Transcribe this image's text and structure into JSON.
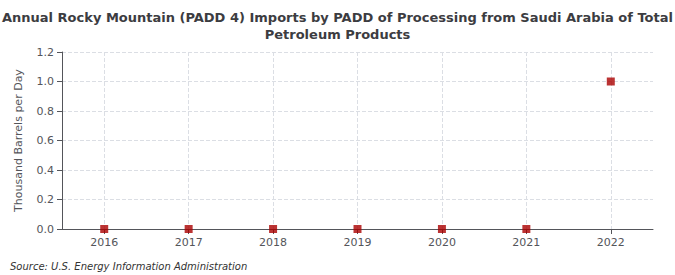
{
  "chart_data": {
    "type": "scatter",
    "title": "Annual Rocky Mountain (PADD 4) Imports by PADD of Processing from Saudi Arabia of Total\nPetroleum Products",
    "ylabel": "Thousand Barrels per Day",
    "annotations": [
      "Source: U.S. Energy Information Administration"
    ],
    "x": [
      2016,
      2017,
      2018,
      2019,
      2020,
      2021,
      2022
    ],
    "values": [
      0.0,
      0.0,
      0.0,
      0.0,
      0.0,
      0.0,
      1.0
    ],
    "color": "#AA0000",
    "marker": "square",
    "xlim": [
      2015.5,
      2022.5
    ],
    "xticks": [
      2016,
      2017,
      2018,
      2019,
      2020,
      2021,
      2022
    ],
    "ylim": [
      0.0,
      1.2
    ],
    "yticks": [
      {
        "value": 0.0,
        "label": "0.0"
      },
      {
        "value": 0.2,
        "label": "0.2"
      },
      {
        "value": 0.4,
        "label": "0.4"
      },
      {
        "value": 0.6,
        "label": "0.6"
      },
      {
        "value": 0.8,
        "label": "0.8"
      },
      {
        "value": 1.0,
        "label": "1.0"
      },
      {
        "value": 1.2,
        "label": "1.2"
      }
    ],
    "grid": true
  }
}
